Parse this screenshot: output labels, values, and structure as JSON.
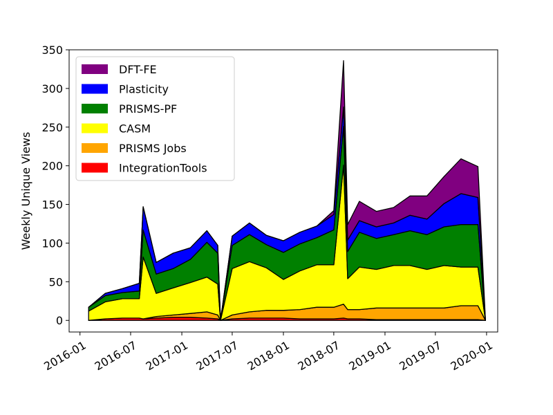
{
  "chart_data": {
    "type": "area",
    "stacked": true,
    "ylabel": "Weekly Unique Views",
    "xlabel": "",
    "ylim": [
      -15,
      350
    ],
    "yticks": [
      0,
      50,
      100,
      150,
      200,
      250,
      300,
      350
    ],
    "xlim": [
      "2015-11-23",
      "2020-02-10"
    ],
    "xticks": [
      "2016-01",
      "2016-07",
      "2017-01",
      "2017-07",
      "2018-01",
      "2018-07",
      "2019-01",
      "2019-07",
      "2020-01"
    ],
    "legend_placement": "upper-left",
    "grid": false,
    "x": [
      "2016-02-01",
      "2016-04-01",
      "2016-06-01",
      "2016-08-01",
      "2016-08-15",
      "2016-10-01",
      "2016-12-01",
      "2017-02-01",
      "2017-04-01",
      "2017-05-10",
      "2017-05-20",
      "2017-07-01",
      "2017-09-01",
      "2017-11-01",
      "2018-01-01",
      "2018-03-01",
      "2018-05-01",
      "2018-07-01",
      "2018-08-05",
      "2018-08-20",
      "2018-10-01",
      "2018-12-01",
      "2019-02-01",
      "2019-04-01",
      "2019-06-01",
      "2019-08-01",
      "2019-10-01",
      "2019-12-01",
      "2019-12-28"
    ],
    "series": [
      {
        "name": "IntegrationTools",
        "color": "#ff0000",
        "values": [
          0,
          2,
          3,
          3,
          2,
          3,
          4,
          4,
          3,
          2,
          0,
          2,
          3,
          3,
          3,
          2,
          2,
          2,
          3,
          2,
          2,
          1,
          1,
          1,
          1,
          1,
          1,
          1,
          0
        ]
      },
      {
        "name": "PRISMS Jobs",
        "color": "#ffa500",
        "values": [
          0,
          0,
          0,
          0,
          0,
          2,
          3,
          5,
          8,
          5,
          0,
          5,
          8,
          10,
          10,
          12,
          15,
          15,
          18,
          12,
          12,
          15,
          15,
          15,
          15,
          15,
          18,
          18,
          0
        ]
      },
      {
        "name": "CASM",
        "color": "#ffff00",
        "values": [
          12,
          22,
          25,
          25,
          80,
          30,
          35,
          40,
          45,
          40,
          0,
          60,
          65,
          55,
          40,
          50,
          55,
          55,
          180,
          40,
          55,
          50,
          55,
          55,
          50,
          55,
          50,
          50,
          0
        ]
      },
      {
        "name": "PRISMS-PF",
        "color": "#008000",
        "values": [
          5,
          8,
          8,
          10,
          35,
          25,
          25,
          30,
          45,
          40,
          0,
          30,
          35,
          30,
          35,
          35,
          35,
          45,
          50,
          35,
          45,
          40,
          40,
          45,
          45,
          50,
          55,
          55,
          0
        ]
      },
      {
        "name": "Plasticity",
        "color": "#0000ff",
        "values": [
          0,
          3,
          5,
          10,
          30,
          15,
          20,
          15,
          15,
          10,
          0,
          12,
          15,
          12,
          15,
          15,
          15,
          20,
          25,
          15,
          15,
          15,
          15,
          20,
          20,
          30,
          40,
          35,
          0
        ]
      },
      {
        "name": "DFT-FE",
        "color": "#800080",
        "values": [
          0,
          0,
          0,
          0,
          0,
          0,
          0,
          0,
          0,
          0,
          0,
          0,
          0,
          0,
          0,
          0,
          0,
          5,
          60,
          20,
          25,
          20,
          20,
          25,
          30,
          35,
          45,
          40,
          0
        ]
      }
    ]
  }
}
